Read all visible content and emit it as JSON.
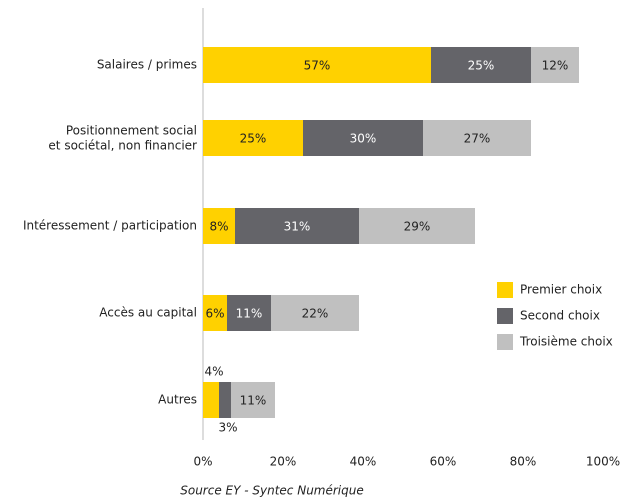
{
  "chart_data": {
    "type": "bar",
    "orientation": "horizontal",
    "stacked": true,
    "categories": [
      "Salaires / primes",
      "Positionnement social\net sociétal, non financier",
      "Intéressement / participation",
      "Accès au capital",
      "Autres"
    ],
    "series": [
      {
        "name": "Premier choix",
        "color": "#ffd100",
        "values": [
          57,
          25,
          8,
          6,
          4
        ],
        "value_labels": [
          "57%",
          "25%",
          "8%",
          "6%",
          "4%"
        ]
      },
      {
        "name": "Second choix",
        "color": "#646469",
        "values": [
          25,
          30,
          31,
          11,
          3
        ],
        "value_labels": [
          "25%",
          "30%",
          "31%",
          "11%",
          "3%"
        ]
      },
      {
        "name": "Troisième choix",
        "color": "#c0c0c0",
        "values": [
          12,
          27,
          29,
          22,
          11
        ],
        "value_labels": [
          "12%",
          "27%",
          "29%",
          "22%",
          "11%"
        ]
      }
    ],
    "xlim": [
      0,
      100
    ],
    "xticks": [
      {
        "value": 0,
        "label": "0%"
      },
      {
        "value": 20,
        "label": "20%"
      },
      {
        "value": 40,
        "label": "40%"
      },
      {
        "value": 60,
        "label": "60%"
      },
      {
        "value": 80,
        "label": "80%"
      },
      {
        "value": 100,
        "label": "100%"
      }
    ],
    "legend": "right",
    "source": "Source EY - Syntec Numérique"
  }
}
